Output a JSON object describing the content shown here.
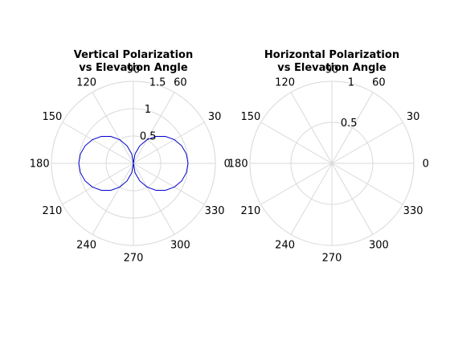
{
  "chart_data": [
    {
      "type": "polar",
      "title": [
        "Vertical Polarization",
        "vs Elevation Angle"
      ],
      "theta_unit": "degrees",
      "theta_ticks": [
        0,
        30,
        60,
        90,
        120,
        150,
        180,
        210,
        240,
        270,
        300,
        330
      ],
      "rlim": [
        0,
        1.5
      ],
      "r_ticks": [
        0.5,
        1,
        1.5
      ],
      "grid": true,
      "series": [
        {
          "color": "#0000cc",
          "formula": "r = |cos(theta)|",
          "theta": [
            0,
            10,
            20,
            30,
            40,
            50,
            60,
            70,
            80,
            90,
            100,
            110,
            120,
            130,
            140,
            150,
            160,
            170,
            180,
            190,
            200,
            210,
            220,
            230,
            240,
            250,
            260,
            270,
            280,
            290,
            300,
            310,
            320,
            330,
            340,
            350,
            360
          ],
          "r": [
            1,
            0.985,
            0.94,
            0.866,
            0.766,
            0.643,
            0.5,
            0.342,
            0.174,
            0,
            0.174,
            0.342,
            0.5,
            0.643,
            0.766,
            0.866,
            0.94,
            0.985,
            1,
            0.985,
            0.94,
            0.866,
            0.766,
            0.643,
            0.5,
            0.342,
            0.174,
            0,
            0.174,
            0.342,
            0.5,
            0.643,
            0.766,
            0.866,
            0.94,
            0.985,
            1
          ]
        }
      ]
    },
    {
      "type": "polar",
      "title": [
        "Horizontal Polarization",
        "vs Elevation Angle"
      ],
      "theta_unit": "degrees",
      "theta_ticks": [
        0,
        30,
        60,
        90,
        120,
        150,
        180,
        210,
        240,
        270,
        300,
        330
      ],
      "rlim": [
        0,
        1
      ],
      "r_ticks": [
        0.5,
        1
      ],
      "grid": true,
      "series": []
    }
  ]
}
